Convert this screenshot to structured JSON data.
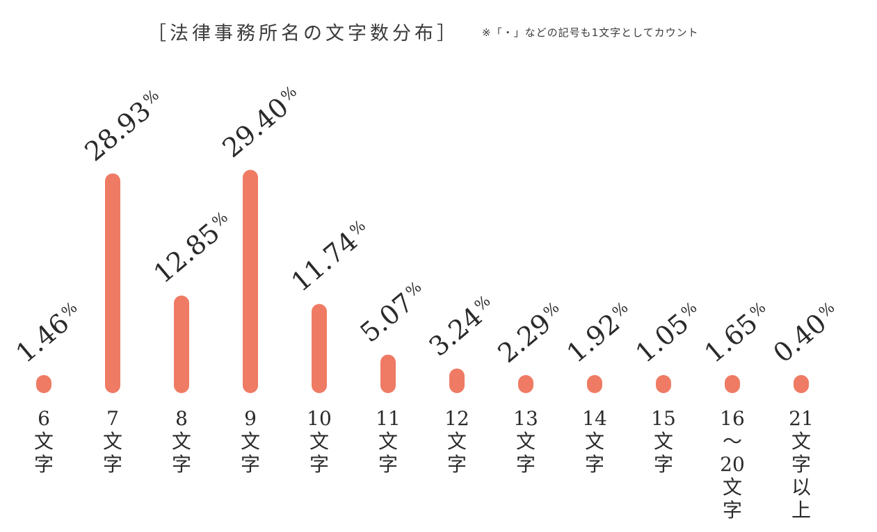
{
  "header": {
    "title": "［法律事務所名の文字数分布］",
    "note": "※「・」などの記号も1文字としてカウント"
  },
  "colors": {
    "bar": "#ef7b64",
    "text": "#2a2a2a"
  },
  "chart_data": {
    "type": "bar",
    "title": "［法律事務所名の文字数分布］",
    "subtitle": "※「・」などの記号も1文字としてカウント",
    "categories": [
      "6文字",
      "7文字",
      "8文字",
      "9文字",
      "10文字",
      "11文字",
      "12文字",
      "13文字",
      "14文字",
      "15文字",
      "16〜20文字",
      "21文字以上"
    ],
    "category_label_lines": [
      [
        "6",
        "文",
        "字"
      ],
      [
        "7",
        "文",
        "字"
      ],
      [
        "8",
        "文",
        "字"
      ],
      [
        "9",
        "文",
        "字"
      ],
      [
        "10",
        "文",
        "字"
      ],
      [
        "11",
        "文",
        "字"
      ],
      [
        "12",
        "文",
        "字"
      ],
      [
        "13",
        "文",
        "字"
      ],
      [
        "14",
        "文",
        "字"
      ],
      [
        "15",
        "文",
        "字"
      ],
      [
        "16",
        "〜",
        "20",
        "文",
        "字"
      ],
      [
        "21",
        "文",
        "字",
        "以",
        "上"
      ]
    ],
    "values": [
      1.46,
      28.93,
      12.85,
      29.4,
      11.74,
      5.07,
      3.24,
      2.29,
      1.92,
      1.05,
      1.65,
      0.4
    ],
    "value_labels": [
      "1.46",
      "28.93",
      "12.85",
      "29.40",
      "11.74",
      "5.07",
      "3.24",
      "2.29",
      "1.92",
      "1.05",
      "1.65",
      "0.40"
    ],
    "unit": "%",
    "ylim": [
      0,
      30
    ],
    "xlabel": "",
    "ylabel": "",
    "grid": false,
    "legend": "none"
  }
}
